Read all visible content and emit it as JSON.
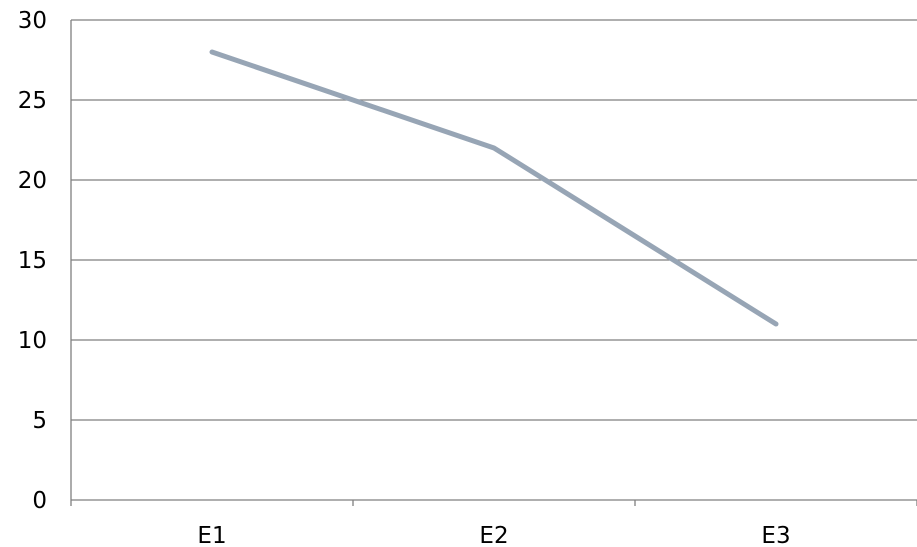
{
  "chart_data": {
    "type": "line",
    "categories": [
      "E1",
      "E2",
      "E3"
    ],
    "series": [
      {
        "values": [
          28,
          22,
          11
        ],
        "color": "#97a5b5"
      }
    ],
    "title": "",
    "xlabel": "",
    "ylabel": "",
    "ylim": [
      0,
      30
    ],
    "yticks": [
      0,
      5,
      10,
      15,
      20,
      25,
      30
    ],
    "grid": "horizontal",
    "legend": "none"
  }
}
